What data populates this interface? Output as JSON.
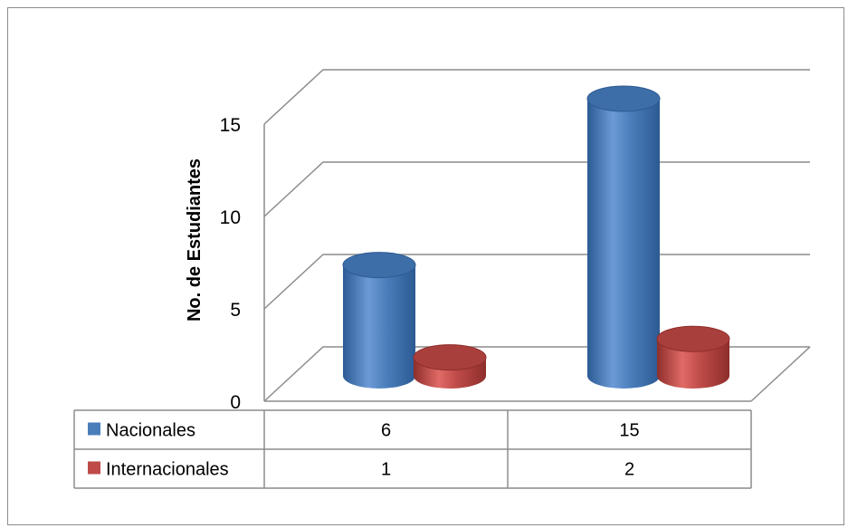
{
  "chart_data": {
    "type": "bar",
    "style": "3d-cylinder",
    "categories": [
      "",
      ""
    ],
    "series": [
      {
        "name": "Nacionales",
        "values": [
          6,
          15
        ],
        "color": "#4a7ebb"
      },
      {
        "name": "Internacionales",
        "values": [
          1,
          2
        ],
        "color": "#be4b48"
      }
    ],
    "title": "",
    "xlabel": "",
    "ylabel": "No. de Estudiantes",
    "ylim": [
      0,
      15
    ],
    "yticks": [
      0,
      5,
      10,
      15
    ],
    "grid": true,
    "legend": "data-table"
  },
  "data_table": {
    "rows": [
      {
        "label": "Nacionales",
        "cells": [
          "6",
          "15"
        ]
      },
      {
        "label": "Internacionales",
        "cells": [
          "1",
          "2"
        ]
      }
    ]
  }
}
